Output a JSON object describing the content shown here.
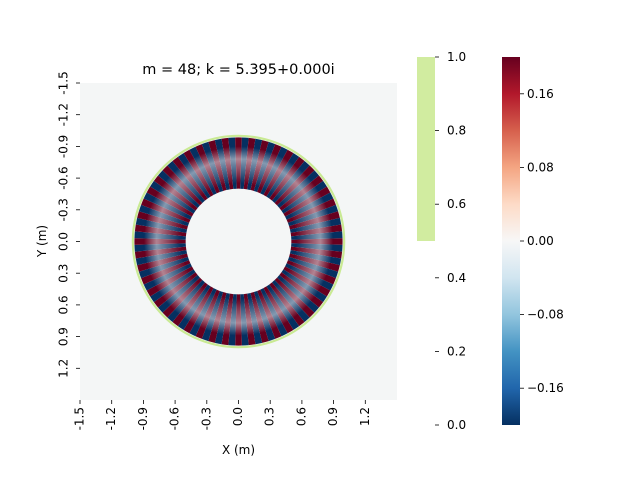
{
  "chart_data": {
    "type": "heatmap",
    "title": "m = 48; k = 5.395+0.000i",
    "xlabel": "X (m)",
    "ylabel": "Y (m)",
    "xlim": [
      -1.5,
      1.5
    ],
    "ylim": [
      1.5,
      -1.5
    ],
    "x_ticks": [
      "-1.5",
      "-1.2",
      "-0.9",
      "-0.6",
      "-0.3",
      "0.0",
      "0.3",
      "0.6",
      "0.9",
      "1.2"
    ],
    "y_ticks": [
      "-1.5",
      "-1.2",
      "-0.9",
      "-0.6",
      "-0.3",
      "0.0",
      "0.3",
      "0.6",
      "0.9",
      "1.2"
    ],
    "azimuthal_order": 48,
    "wavenumber": "5.395+0.000i",
    "boundary_radius": 1.0,
    "field_range": [
      -0.2,
      0.2
    ],
    "mask_colorbar": {
      "range": [
        0.0,
        1.0
      ],
      "ticks": [
        "0.0",
        "0.2",
        "0.4",
        "0.6",
        "0.8",
        "1.0"
      ],
      "filled_range": [
        0.5,
        1.0
      ],
      "color": "#d1eca0"
    },
    "field_colorbar": {
      "range": [
        -0.2,
        0.2
      ],
      "ticks": [
        "−0.16",
        "−0.08",
        "0.00",
        "0.08",
        "0.16"
      ],
      "tick_values": [
        -0.16,
        -0.08,
        0.0,
        0.08,
        0.16
      ],
      "colormap": "RdBu_r"
    },
    "colors": {
      "background_field": "#f4f6f6",
      "boundary": "#c9ea93",
      "positive": "#67001f",
      "negative": "#053061"
    }
  }
}
